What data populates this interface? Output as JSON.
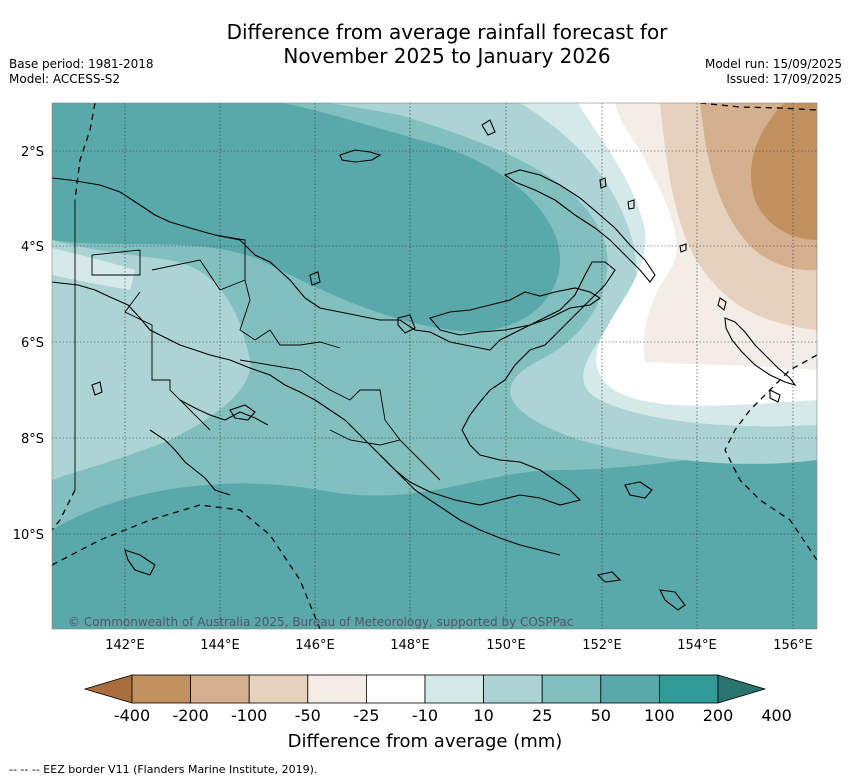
{
  "title_line1": "Difference from average rainfall forecast for",
  "title_line2": "November 2025 to January 2026",
  "meta": {
    "base_period": "Base period: 1981-2018",
    "model": "Model: ACCESS-S2",
    "model_run": "Model run: 15/09/2025",
    "issued": "Issued: 17/09/2025"
  },
  "map": {
    "lon_labels": [
      "142°E",
      "144°E",
      "146°E",
      "148°E",
      "150°E",
      "152°E",
      "154°E",
      "156°E"
    ],
    "lat_labels": [
      "2°S",
      "4°S",
      "6°S",
      "8°S",
      "10°S"
    ],
    "copyright": "© Commonwealth of Australia 2025, Bureau of Meteorology, supported by COSPPac"
  },
  "colorbar": {
    "labels": [
      "-400",
      "-200",
      "-100",
      "-50",
      "-25",
      "-10",
      "10",
      "25",
      "50",
      "100",
      "200",
      "400"
    ],
    "colors": [
      "#a86f3c",
      "#c1925f",
      "#d4b08e",
      "#e6d1bd",
      "#f3ede6",
      "#ffffff",
      "#d6e9e9",
      "#acd4d4",
      "#82bfbf",
      "#5aa9aa",
      "#329b98",
      "#2a7470"
    ],
    "title": "Difference from average (mm)"
  },
  "footer": "-- -- -- EEZ border V11 (Flanders Marine Institute, 2019)."
}
